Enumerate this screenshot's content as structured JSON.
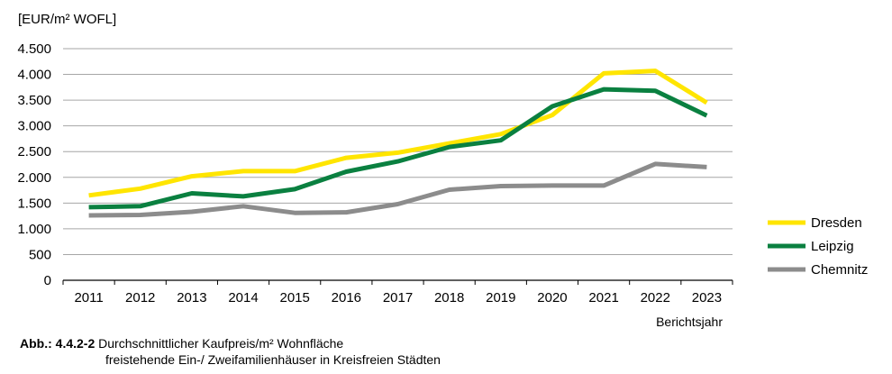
{
  "chart_data": {
    "type": "line",
    "ylabel": "[EUR/m² WOFL]",
    "xlabel": "Berichtsjahr",
    "categories": [
      "2011",
      "2012",
      "2013",
      "2014",
      "2015",
      "2016",
      "2017",
      "2018",
      "2019",
      "2020",
      "2021",
      "2022",
      "2023"
    ],
    "ylim": [
      0,
      4500
    ],
    "yticks": [
      0,
      500,
      1000,
      1500,
      2000,
      2500,
      3000,
      3500,
      4000,
      4500
    ],
    "ytick_labels": [
      "0",
      "500",
      "1.000",
      "1.500",
      "2.000",
      "2.500",
      "3.000",
      "3.500",
      "4.000",
      "4.500"
    ],
    "grid": true,
    "legend_position": "right",
    "series": [
      {
        "name": "Dresden",
        "color": "#ffe500",
        "values": [
          1650,
          1780,
          2020,
          2120,
          2120,
          2380,
          2480,
          2660,
          2840,
          3210,
          4020,
          4070,
          3450
        ]
      },
      {
        "name": "Leipzig",
        "color": "#0a8040",
        "values": [
          1420,
          1440,
          1690,
          1630,
          1770,
          2110,
          2310,
          2590,
          2720,
          3380,
          3710,
          3680,
          3200
        ]
      },
      {
        "name": "Chemnitz",
        "color": "#8c8c8c",
        "values": [
          1260,
          1270,
          1330,
          1440,
          1310,
          1320,
          1480,
          1760,
          1830,
          1840,
          1840,
          2260,
          2200
        ]
      }
    ]
  },
  "caption": {
    "label": "Abb.: 4.4.2-2",
    "line1": "Durchschnittlicher Kaufpreis/m² Wohnfläche",
    "line2": "freistehende Ein-/ Zweifamilienhäuser in Kreisfreien Städten"
  }
}
